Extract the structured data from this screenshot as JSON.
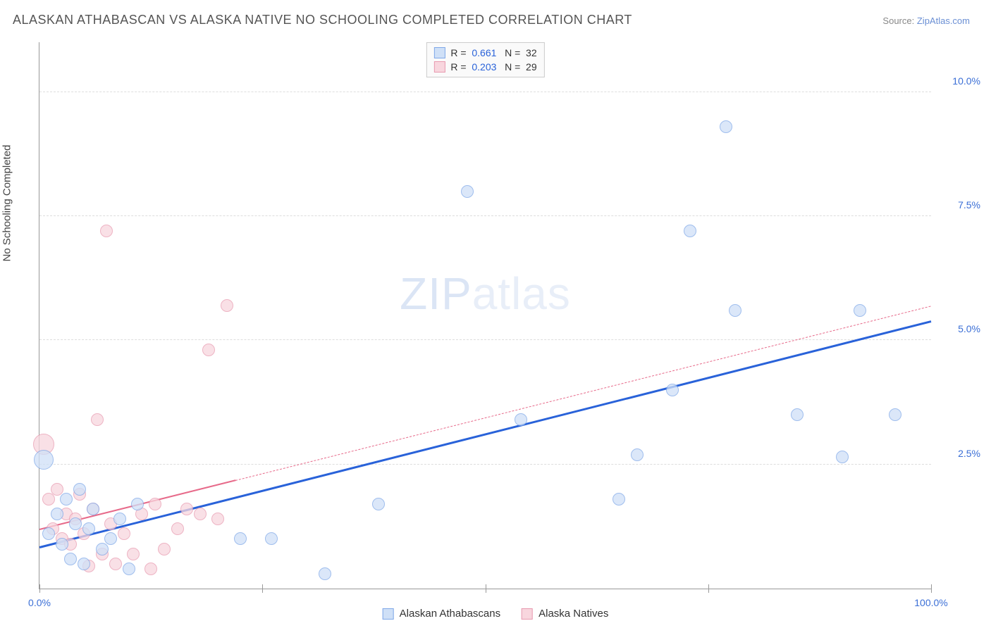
{
  "title": "ALASKAN ATHABASCAN VS ALASKA NATIVE NO SCHOOLING COMPLETED CORRELATION CHART",
  "source_label": "Source:",
  "source_name": "ZipAtlas.com",
  "ylabel": "No Schooling Completed",
  "watermark": {
    "part1": "ZIP",
    "part2": "atlas"
  },
  "chart": {
    "type": "scatter",
    "xlim": [
      0,
      100
    ],
    "ylim": [
      0,
      11
    ],
    "y_gridlines": [
      2.5,
      5.0,
      7.5,
      10.0
    ],
    "y_tick_labels": [
      "2.5%",
      "5.0%",
      "7.5%",
      "10.0%"
    ],
    "x_tick_positions": [
      0,
      25,
      50,
      75,
      100
    ],
    "x_tick_labels_shown": {
      "0": "0.0%",
      "100": "100.0%"
    },
    "background_color": "#ffffff",
    "grid_color": "#dddddd",
    "axis_color": "#999999",
    "tick_label_color": "#3b6fd6",
    "axis_label_color": "#444444",
    "title_color": "#555555",
    "series": [
      {
        "name": "Alaskan Athabascans",
        "color_fill": "#cfe0f7",
        "color_stroke": "#7fa8e8",
        "marker_radius": 9,
        "marker_opacity": 0.75,
        "R": "0.661",
        "N": "32",
        "trend": {
          "x1": 0,
          "y1": 0.85,
          "x2": 100,
          "y2": 5.4,
          "color": "#2962d9",
          "width": 2.5,
          "dash_after_x": null
        },
        "points": [
          {
            "x": 0.5,
            "y": 2.6,
            "r": 14
          },
          {
            "x": 1,
            "y": 1.1
          },
          {
            "x": 2,
            "y": 1.5
          },
          {
            "x": 2.5,
            "y": 0.9
          },
          {
            "x": 3,
            "y": 1.8
          },
          {
            "x": 3.5,
            "y": 0.6
          },
          {
            "x": 4,
            "y": 1.3
          },
          {
            "x": 4.5,
            "y": 2.0
          },
          {
            "x": 5,
            "y": 0.5
          },
          {
            "x": 5.5,
            "y": 1.2
          },
          {
            "x": 6,
            "y": 1.6
          },
          {
            "x": 7,
            "y": 0.8
          },
          {
            "x": 8,
            "y": 1.0
          },
          {
            "x": 9,
            "y": 1.4
          },
          {
            "x": 10,
            "y": 0.4
          },
          {
            "x": 11,
            "y": 1.7
          },
          {
            "x": 22.5,
            "y": 1.0
          },
          {
            "x": 26,
            "y": 1.0
          },
          {
            "x": 32,
            "y": 0.3
          },
          {
            "x": 38,
            "y": 1.7
          },
          {
            "x": 48,
            "y": 8.0
          },
          {
            "x": 54,
            "y": 3.4
          },
          {
            "x": 65,
            "y": 1.8
          },
          {
            "x": 67,
            "y": 2.7
          },
          {
            "x": 71,
            "y": 4.0
          },
          {
            "x": 73,
            "y": 7.2
          },
          {
            "x": 77,
            "y": 9.3
          },
          {
            "x": 78,
            "y": 5.6
          },
          {
            "x": 85,
            "y": 3.5
          },
          {
            "x": 90,
            "y": 2.65
          },
          {
            "x": 92,
            "y": 5.6
          },
          {
            "x": 96,
            "y": 3.5
          }
        ]
      },
      {
        "name": "Alaska Natives",
        "color_fill": "#f8d6de",
        "color_stroke": "#e89ab0",
        "marker_radius": 9,
        "marker_opacity": 0.75,
        "R": "0.203",
        "N": "29",
        "trend": {
          "x1": 0,
          "y1": 1.2,
          "x2": 100,
          "y2": 5.7,
          "color": "#e76a8a",
          "width": 2,
          "dash_after_x": 22
        },
        "points": [
          {
            "x": 0.5,
            "y": 2.9,
            "r": 15
          },
          {
            "x": 1,
            "y": 1.8
          },
          {
            "x": 1.5,
            "y": 1.2
          },
          {
            "x": 2,
            "y": 2.0
          },
          {
            "x": 2.5,
            "y": 1.0
          },
          {
            "x": 3,
            "y": 1.5
          },
          {
            "x": 3.5,
            "y": 0.9
          },
          {
            "x": 4,
            "y": 1.4
          },
          {
            "x": 4.5,
            "y": 1.9
          },
          {
            "x": 5,
            "y": 1.1
          },
          {
            "x": 5.5,
            "y": 0.45
          },
          {
            "x": 6,
            "y": 1.6
          },
          {
            "x": 6.5,
            "y": 3.4
          },
          {
            "x": 7,
            "y": 0.7
          },
          {
            "x": 7.5,
            "y": 7.2
          },
          {
            "x": 8,
            "y": 1.3
          },
          {
            "x": 8.5,
            "y": 0.5
          },
          {
            "x": 9.5,
            "y": 1.1
          },
          {
            "x": 10.5,
            "y": 0.7
          },
          {
            "x": 11.5,
            "y": 1.5
          },
          {
            "x": 12.5,
            "y": 0.4
          },
          {
            "x": 13,
            "y": 1.7
          },
          {
            "x": 14,
            "y": 0.8
          },
          {
            "x": 15.5,
            "y": 1.2
          },
          {
            "x": 16.5,
            "y": 1.6
          },
          {
            "x": 18,
            "y": 1.5
          },
          {
            "x": 19,
            "y": 4.8
          },
          {
            "x": 20,
            "y": 1.4
          },
          {
            "x": 21,
            "y": 5.7
          }
        ]
      }
    ]
  },
  "legend_top": {
    "r_label": "R =",
    "n_label": "N =",
    "value_color": "#2962d9",
    "text_color": "#333333",
    "border_color": "#cccccc"
  },
  "legend_bottom": {
    "items": [
      "Alaskan Athabascans",
      "Alaska Natives"
    ]
  }
}
